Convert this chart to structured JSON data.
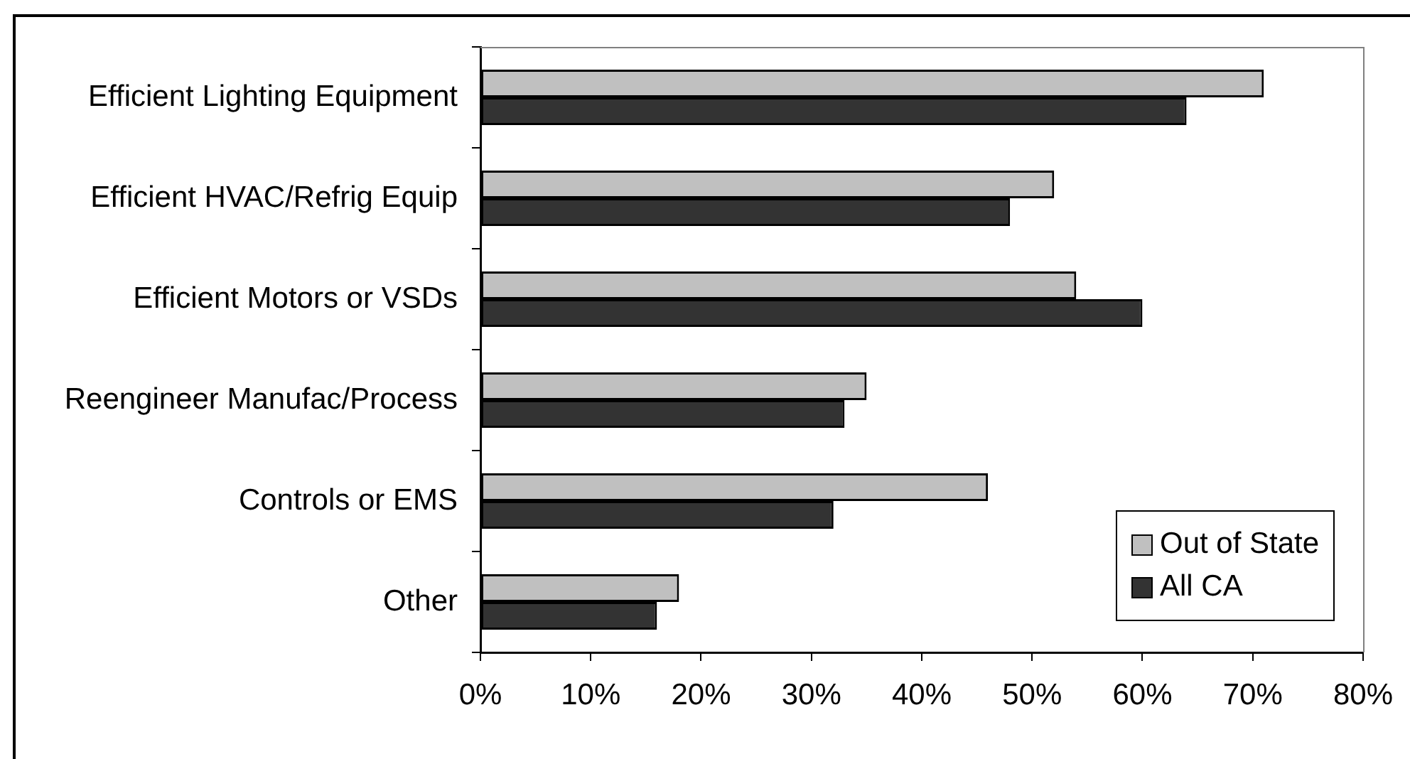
{
  "chart_data": {
    "type": "bar",
    "orientation": "horizontal",
    "categories": [
      "Efficient Lighting Equipment",
      "Efficient HVAC/Refrig Equip",
      "Efficient Motors or VSDs",
      "Reengineer Manufac/Process",
      "Controls or EMS",
      "Other"
    ],
    "series": [
      {
        "name": "Out of State",
        "color": "#c0c0c0",
        "values": [
          71,
          52,
          54,
          35,
          46,
          18
        ]
      },
      {
        "name": "All CA",
        "color": "#333333",
        "values": [
          64,
          48,
          60,
          33,
          32,
          16
        ]
      }
    ],
    "xlim": [
      0,
      80
    ],
    "xticks": [
      {
        "value": 0,
        "label": "0%"
      },
      {
        "value": 10,
        "label": "10%"
      },
      {
        "value": 20,
        "label": "20%"
      },
      {
        "value": 30,
        "label": "30%"
      },
      {
        "value": 40,
        "label": "40%"
      },
      {
        "value": 50,
        "label": "50%"
      },
      {
        "value": 60,
        "label": "60%"
      },
      {
        "value": 70,
        "label": "70%"
      },
      {
        "value": 80,
        "label": "80%"
      }
    ],
    "legend": "bottom right",
    "grid": false
  }
}
